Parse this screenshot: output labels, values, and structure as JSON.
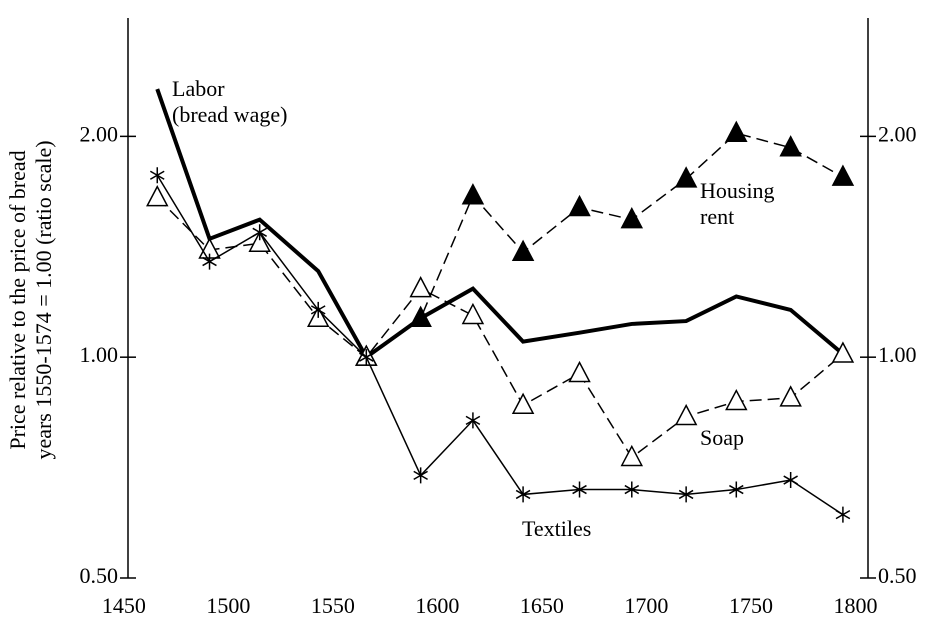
{
  "chart_data": {
    "type": "line",
    "y_label": [
      "Price relative to the price of bread",
      "years 1550-1574 = 1.00 (ratio scale)"
    ],
    "log_scale": true,
    "x": [
      1466,
      1491,
      1515,
      1543,
      1566,
      1592,
      1617,
      1641,
      1668,
      1693,
      1719,
      1743,
      1769,
      1794
    ],
    "xlim": [
      1452,
      1806
    ],
    "xticks": [
      1450,
      1500,
      1550,
      1600,
      1650,
      1700,
      1750,
      1800
    ],
    "ylim": [
      0.5,
      2.9
    ],
    "yticks": [
      {
        "value": 0.5,
        "label": "0.50"
      },
      {
        "value": 1,
        "label": "1.00"
      },
      {
        "value": 2,
        "label": "2.00"
      }
    ],
    "y2lim": [
      0.5,
      2.9
    ],
    "y2ticks": [
      {
        "value": 0.5,
        "label": "0.50"
      },
      {
        "value": 1,
        "label": "1.00"
      },
      {
        "value": 2,
        "label": "2.00"
      }
    ],
    "color": "#000000",
    "series": [
      {
        "name": "Labor\n(bread wage)",
        "style": "solid-thick",
        "marker": "none",
        "values": [
          2.32,
          1.45,
          1.54,
          1.31,
          1.0,
          1.13,
          1.24,
          1.05,
          1.08,
          1.11,
          1.12,
          1.21,
          1.16,
          1.01
        ]
      },
      {
        "name": "Housing\nrent",
        "style": "dashed",
        "marker": "filled-triangle",
        "values": [
          null,
          null,
          null,
          null,
          1.0,
          1.13,
          1.66,
          1.39,
          1.6,
          1.54,
          1.75,
          2.02,
          1.93,
          1.76
        ]
      },
      {
        "name": "Soap",
        "style": "dashed",
        "marker": "open-triangle",
        "values": [
          1.65,
          1.4,
          1.43,
          1.13,
          1.0,
          1.24,
          1.14,
          0.86,
          0.95,
          0.73,
          0.83,
          0.87,
          0.88,
          1.01
        ]
      },
      {
        "name": "Textiles",
        "style": "thin",
        "marker": "asterisk",
        "values": [
          1.77,
          1.35,
          1.48,
          1.16,
          1.0,
          0.69,
          0.82,
          0.65,
          0.66,
          0.66,
          0.65,
          0.66,
          0.68,
          0.61
        ]
      }
    ]
  }
}
